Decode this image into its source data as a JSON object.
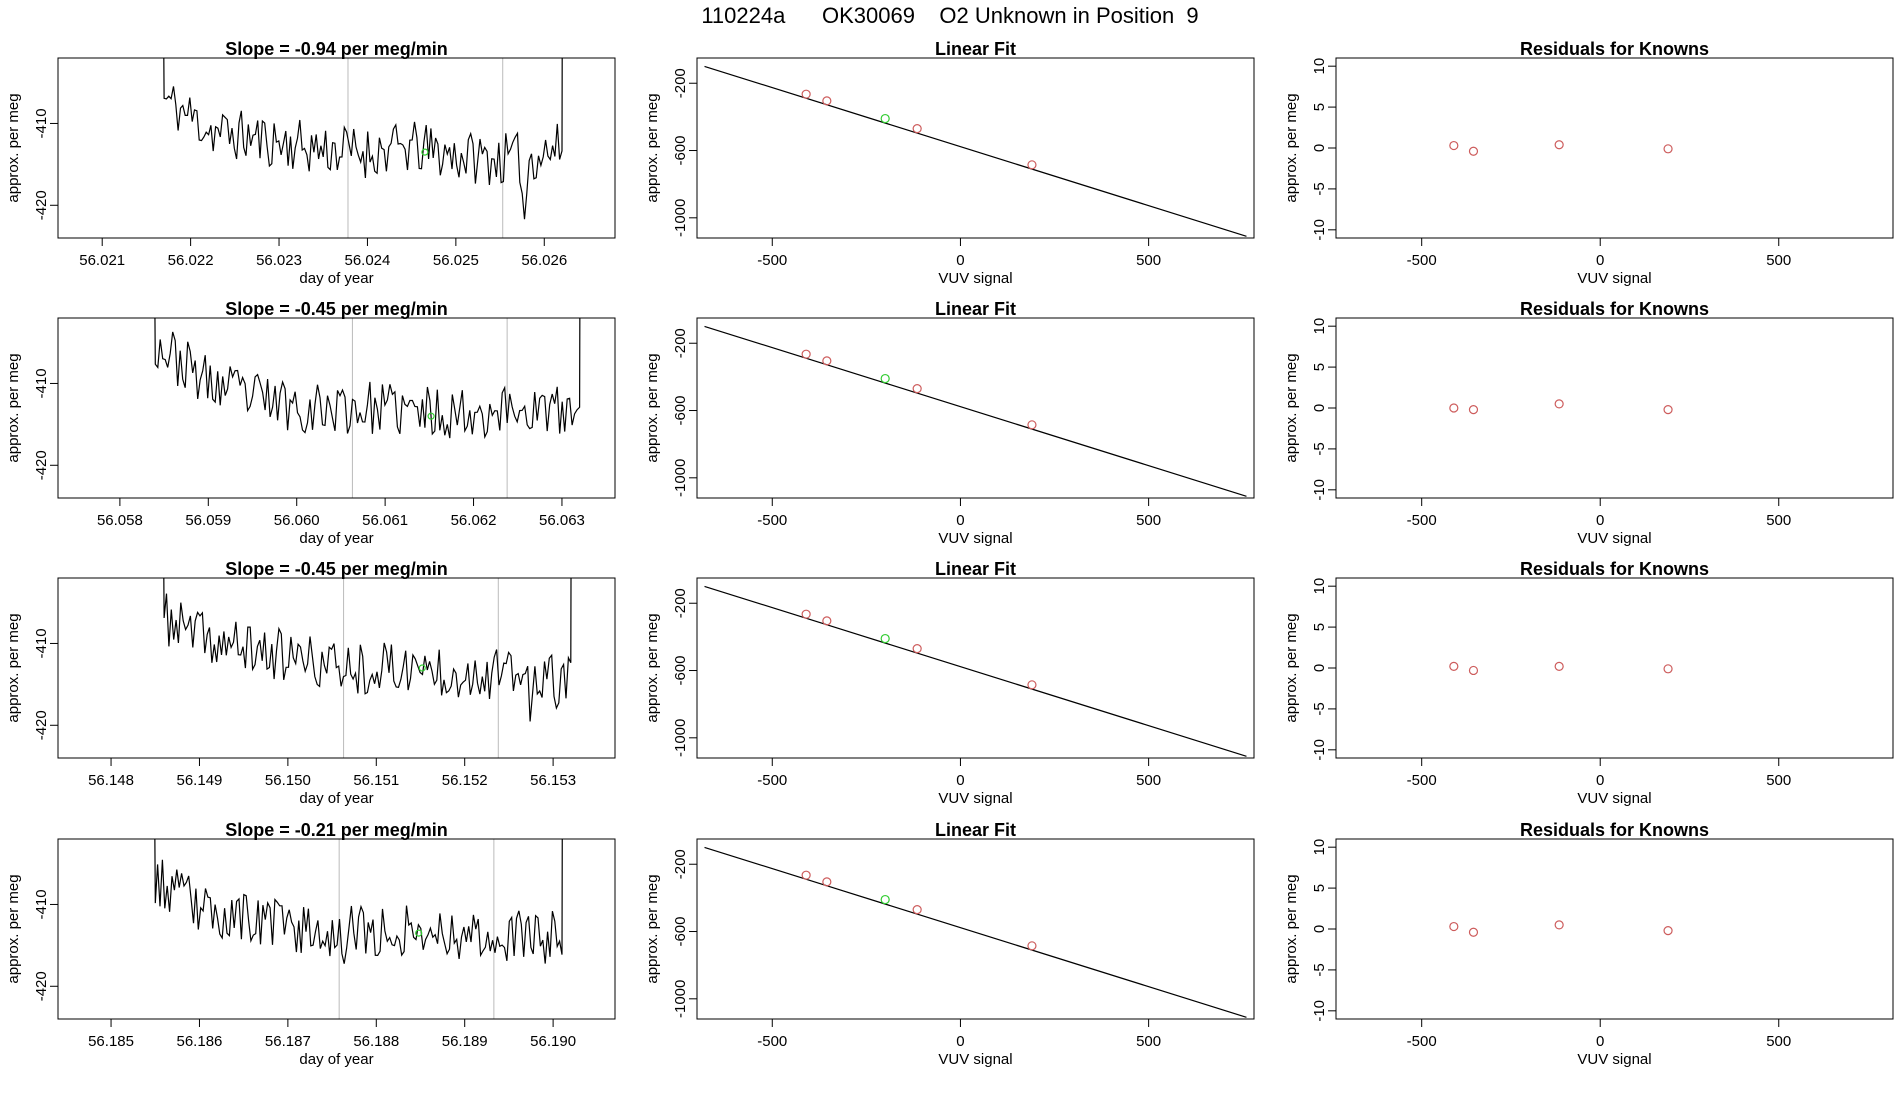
{
  "title": "110224a      OK30069    O2 Unknown in Position  9",
  "colors": {
    "line": "#000000",
    "known": "#cd5c5c",
    "unknown": "#32cd32",
    "marker": "#bbbbbb",
    "frame": "#000000"
  },
  "chart_data": [
    {
      "type": "line",
      "panel": "time-series",
      "row": 0,
      "title": "Slope =  -0.94  per meg/min",
      "xlabel": "day of year",
      "ylabel": "approx. per meg",
      "xlim": [
        56.0205,
        56.0268
      ],
      "ylim": [
        -424,
        -402
      ],
      "xticks": [
        56.021,
        56.022,
        56.023,
        56.024,
        56.025,
        56.026
      ],
      "xtick_labels": [
        "56.021",
        "56.022",
        "56.023",
        "56.024",
        "56.025",
        "56.026"
      ],
      "yticks": [
        -420,
        -410
      ],
      "ytick_labels": [
        "-420",
        "-410"
      ],
      "x_start": 56.0217,
      "x_end": 56.0262,
      "baseline": [
        -407,
        -411,
        -412,
        -413,
        -413.5,
        -413,
        -414,
        -414.5,
        -413
      ],
      "spikes": [
        [
          56.02578,
          -9
        ]
      ],
      "vlines": [
        56.02378,
        56.02553
      ],
      "unknown_point": [
        56.02465,
        -413.5
      ],
      "seed": 11
    },
    {
      "type": "scatter",
      "panel": "linear-fit",
      "row": 0,
      "title": "Linear Fit",
      "xlabel": "VUV signal",
      "ylabel": "approx. per meg",
      "xlim": [
        -700,
        780
      ],
      "ylim": [
        -1120,
        -50
      ],
      "xticks": [
        -500,
        0,
        500
      ],
      "xtick_labels": [
        "-500",
        "0",
        "500"
      ],
      "yticks": [
        -1000,
        -600,
        -200
      ],
      "ytick_labels": [
        "-1000",
        "-600",
        "-200"
      ],
      "fit_line": {
        "x": [
          -680,
          760
        ],
        "y": [
          -100,
          -1110
        ]
      },
      "known_x": [
        -410,
        -355,
        -115,
        190
      ],
      "known_y": [
        -265,
        -305,
        -470,
        -685
      ],
      "unknown_x": [
        -200
      ],
      "unknown_y": [
        -410
      ]
    },
    {
      "type": "scatter",
      "panel": "residuals",
      "row": 0,
      "title": "Residuals for Knowns",
      "xlabel": "VUV signal",
      "ylabel": "approx. per meg",
      "xlim": [
        -740,
        820
      ],
      "ylim": [
        -11,
        11
      ],
      "xticks": [
        -500,
        0,
        500
      ],
      "xtick_labels": [
        "-500",
        "0",
        "500"
      ],
      "yticks": [
        -10,
        -5,
        0,
        5,
        10
      ],
      "ytick_labels": [
        "-10",
        "-5",
        "0",
        "5",
        "10"
      ],
      "x": [
        -410,
        -355,
        -115,
        190
      ],
      "y": [
        0.3,
        -0.4,
        0.4,
        -0.1
      ]
    },
    {
      "type": "line",
      "panel": "time-series",
      "row": 1,
      "title": "Slope =  -0.45  per meg/min",
      "xlabel": "day of year",
      "ylabel": "approx. per meg",
      "xlim": [
        56.0573,
        56.0636
      ],
      "ylim": [
        -424,
        -402
      ],
      "xticks": [
        56.058,
        56.059,
        56.06,
        56.061,
        56.062,
        56.063
      ],
      "xtick_labels": [
        "56.058",
        "56.059",
        "56.060",
        "56.061",
        "56.062",
        "56.063"
      ],
      "yticks": [
        -420,
        -410
      ],
      "ytick_labels": [
        "-420",
        "-410"
      ],
      "x_start": 56.0584,
      "x_end": 56.0632,
      "baseline": [
        -405,
        -410,
        -412,
        -413,
        -413,
        -413.5,
        -413.5,
        -413,
        -414
      ],
      "spikes": [],
      "vlines": [
        56.06063,
        56.06238
      ],
      "unknown_point": [
        56.06152,
        -414
      ],
      "seed": 23
    },
    {
      "type": "scatter",
      "panel": "linear-fit",
      "row": 1,
      "title": "Linear Fit",
      "xlabel": "VUV signal",
      "ylabel": "approx. per meg",
      "xlim": [
        -700,
        780
      ],
      "ylim": [
        -1120,
        -50
      ],
      "xticks": [
        -500,
        0,
        500
      ],
      "xtick_labels": [
        "-500",
        "0",
        "500"
      ],
      "yticks": [
        -1000,
        -600,
        -200
      ],
      "ytick_labels": [
        "-1000",
        "-600",
        "-200"
      ],
      "fit_line": {
        "x": [
          -680,
          760
        ],
        "y": [
          -100,
          -1110
        ]
      },
      "known_x": [
        -410,
        -355,
        -115,
        190
      ],
      "known_y": [
        -265,
        -305,
        -470,
        -685
      ],
      "unknown_x": [
        -200
      ],
      "unknown_y": [
        -410
      ]
    },
    {
      "type": "scatter",
      "panel": "residuals",
      "row": 1,
      "title": "Residuals for Knowns",
      "xlabel": "VUV signal",
      "ylabel": "approx. per meg",
      "xlim": [
        -740,
        820
      ],
      "ylim": [
        -11,
        11
      ],
      "xticks": [
        -500,
        0,
        500
      ],
      "xtick_labels": [
        "-500",
        "0",
        "500"
      ],
      "yticks": [
        -10,
        -5,
        0,
        5,
        10
      ],
      "ytick_labels": [
        "-10",
        "-5",
        "0",
        "5",
        "10"
      ],
      "x": [
        -410,
        -355,
        -115,
        190
      ],
      "y": [
        0.0,
        -0.2,
        0.5,
        -0.2
      ]
    },
    {
      "type": "line",
      "panel": "time-series",
      "row": 2,
      "title": "Slope =  -0.45  per meg/min",
      "xlabel": "day of year",
      "ylabel": "approx. per meg",
      "xlim": [
        56.1474,
        56.1537
      ],
      "ylim": [
        -424,
        -402
      ],
      "xticks": [
        56.148,
        56.149,
        56.15,
        56.151,
        56.152,
        56.153
      ],
      "xtick_labels": [
        "56.148",
        "56.149",
        "56.150",
        "56.151",
        "56.152",
        "56.153"
      ],
      "yticks": [
        -420,
        -410
      ],
      "ytick_labels": [
        "-420",
        "-410"
      ],
      "x_start": 56.1486,
      "x_end": 56.1532,
      "baseline": [
        -407,
        -410,
        -411,
        -412.5,
        -413,
        -413,
        -413.5,
        -414,
        -415
      ],
      "spikes": [
        [
          56.15275,
          -6
        ]
      ],
      "vlines": [
        56.15063,
        56.15238
      ],
      "unknown_point": [
        56.15152,
        -413
      ],
      "seed": 37
    },
    {
      "type": "scatter",
      "panel": "linear-fit",
      "row": 2,
      "title": "Linear Fit",
      "xlabel": "VUV signal",
      "ylabel": "approx. per meg",
      "xlim": [
        -700,
        780
      ],
      "ylim": [
        -1120,
        -50
      ],
      "xticks": [
        -500,
        0,
        500
      ],
      "xtick_labels": [
        "-500",
        "0",
        "500"
      ],
      "yticks": [
        -1000,
        -600,
        -200
      ],
      "ytick_labels": [
        "-1000",
        "-600",
        "-200"
      ],
      "fit_line": {
        "x": [
          -680,
          760
        ],
        "y": [
          -100,
          -1110
        ]
      },
      "known_x": [
        -410,
        -355,
        -115,
        190
      ],
      "known_y": [
        -265,
        -305,
        -470,
        -685
      ],
      "unknown_x": [
        -200
      ],
      "unknown_y": [
        -410
      ]
    },
    {
      "type": "scatter",
      "panel": "residuals",
      "row": 2,
      "title": "Residuals for Knowns",
      "xlabel": "VUV signal",
      "ylabel": "approx. per meg",
      "xlim": [
        -740,
        820
      ],
      "ylim": [
        -11,
        11
      ],
      "xticks": [
        -500,
        0,
        500
      ],
      "xtick_labels": [
        "-500",
        "0",
        "500"
      ],
      "yticks": [
        -10,
        -5,
        0,
        5,
        10
      ],
      "ytick_labels": [
        "-10",
        "-5",
        "0",
        "5",
        "10"
      ],
      "x": [
        -410,
        -355,
        -115,
        190
      ],
      "y": [
        0.2,
        -0.3,
        0.2,
        -0.1
      ]
    },
    {
      "type": "line",
      "panel": "time-series",
      "row": 3,
      "title": "Slope =  -0.21  per meg/min",
      "xlabel": "day of year",
      "ylabel": "approx. per meg",
      "xlim": [
        56.1844,
        56.1907
      ],
      "ylim": [
        -424,
        -402
      ],
      "xticks": [
        56.185,
        56.186,
        56.187,
        56.188,
        56.189,
        56.19
      ],
      "xtick_labels": [
        "56.185",
        "56.186",
        "56.187",
        "56.188",
        "56.189",
        "56.190"
      ],
      "yticks": [
        -420,
        -410
      ],
      "ytick_labels": [
        "-420",
        "-410"
      ],
      "x_start": 56.1855,
      "x_end": 56.1901,
      "baseline": [
        -407,
        -411,
        -412,
        -413,
        -413.5,
        -413,
        -413.5,
        -414,
        -414
      ],
      "spikes": [
        [
          56.18763,
          -4
        ]
      ],
      "vlines": [
        56.18758,
        56.18933
      ],
      "unknown_point": [
        56.18848,
        -413.5
      ],
      "seed": 53
    },
    {
      "type": "scatter",
      "panel": "linear-fit",
      "row": 3,
      "title": "Linear Fit",
      "xlabel": "VUV signal",
      "ylabel": "approx. per meg",
      "xlim": [
        -700,
        780
      ],
      "ylim": [
        -1120,
        -50
      ],
      "xticks": [
        -500,
        0,
        500
      ],
      "xtick_labels": [
        "-500",
        "0",
        "500"
      ],
      "yticks": [
        -1000,
        -600,
        -200
      ],
      "ytick_labels": [
        "-1000",
        "-600",
        "-200"
      ],
      "fit_line": {
        "x": [
          -680,
          760
        ],
        "y": [
          -100,
          -1110
        ]
      },
      "known_x": [
        -410,
        -355,
        -115,
        190
      ],
      "known_y": [
        -265,
        -305,
        -470,
        -685
      ],
      "unknown_x": [
        -200
      ],
      "unknown_y": [
        -410
      ]
    },
    {
      "type": "scatter",
      "panel": "residuals",
      "row": 3,
      "title": "Residuals for Knowns",
      "xlabel": "VUV signal",
      "ylabel": "approx. per meg",
      "xlim": [
        -740,
        820
      ],
      "ylim": [
        -11,
        11
      ],
      "xticks": [
        -500,
        0,
        500
      ],
      "xtick_labels": [
        "-500",
        "0",
        "500"
      ],
      "yticks": [
        -10,
        -5,
        0,
        5,
        10
      ],
      "ytick_labels": [
        "-10",
        "-5",
        "0",
        "5",
        "10"
      ],
      "x": [
        -410,
        -355,
        -115,
        190
      ],
      "y": [
        0.3,
        -0.4,
        0.5,
        -0.2
      ]
    }
  ]
}
